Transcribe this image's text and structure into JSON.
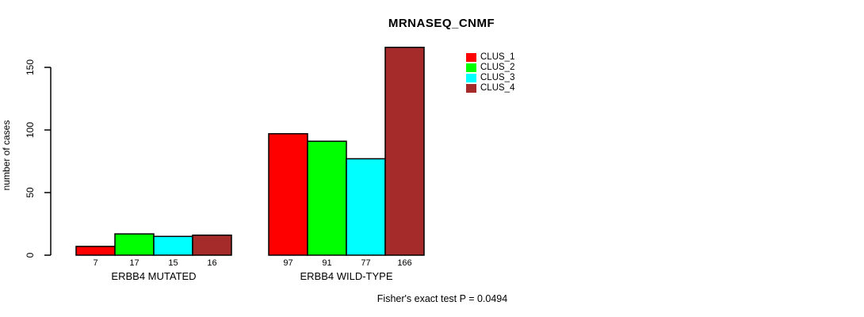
{
  "title": "MRNASEQ_CNMF",
  "chart_data": {
    "type": "bar",
    "title": "MRNASEQ_CNMF",
    "ylabel": "number of cases",
    "xlabel": "",
    "categories": [
      "ERBB4 MUTATED",
      "ERBB4 WILD-TYPE"
    ],
    "series": [
      {
        "name": "CLUS_1",
        "color": "#ff0000",
        "values": [
          7,
          97
        ]
      },
      {
        "name": "CLUS_2",
        "color": "#00ff00",
        "values": [
          17,
          91
        ]
      },
      {
        "name": "CLUS_3",
        "color": "#00ffff",
        "values": [
          15,
          77
        ]
      },
      {
        "name": "CLUS_4",
        "color": "#a52a2a",
        "values": [
          16,
          166
        ]
      }
    ],
    "yticks": [
      0,
      50,
      100,
      150
    ],
    "ylim": [
      0,
      150
    ],
    "grid": false,
    "legend_position": "top-right",
    "bar_outline_color": "#000000",
    "value_labels_shown": true,
    "annotation": "Fisher's exact test P = 0.0494"
  }
}
